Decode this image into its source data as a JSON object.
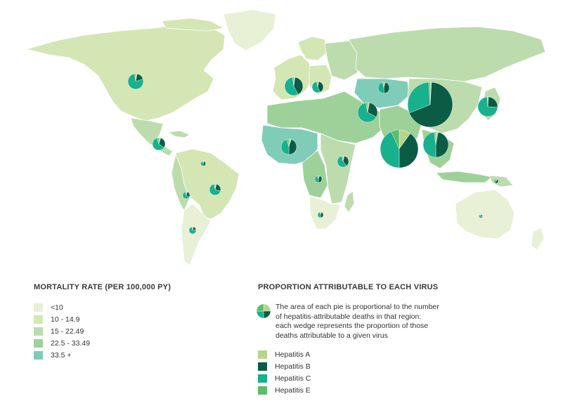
{
  "legend_rate": {
    "title": "MORTALITY RATE (PER 100,000 PY)",
    "items": [
      {
        "label": "<10",
        "color": "#e8f0d6"
      },
      {
        "label": "10 - 14.9",
        "color": "#d4e6b4"
      },
      {
        "label": "15 - 22.49",
        "color": "#bcdcae"
      },
      {
        "label": "22.5 - 33.49",
        "color": "#9ed19a"
      },
      {
        "label": "33.5 +",
        "color": "#7fcdb8"
      }
    ]
  },
  "legend_virus": {
    "title": "PROPORTION ATTRIBUTABLE TO EACH VIRUS",
    "note_lines": [
      "The area of each pie is proportional to the number",
      "of hepatitis-attributable deaths in that region:",
      "each wedge represents the proportion of those",
      "deaths attributable to a given virus"
    ],
    "items": [
      {
        "label": "Hepatitis A",
        "color": "#b5d68a"
      },
      {
        "label": "Hepatitis B",
        "color": "#0a5c45"
      },
      {
        "label": "Hepatitis C",
        "color": "#19b08d"
      },
      {
        "label": "Hepatitis E",
        "color": "#5bbd6a"
      }
    ]
  },
  "pies": [
    {
      "region": "north-america",
      "shares": [
        0.03,
        0.17,
        0.78,
        0.02
      ]
    },
    {
      "region": "central-america",
      "shares": [
        0.05,
        0.3,
        0.6,
        0.05
      ]
    },
    {
      "region": "caribbean",
      "shares": [
        0.05,
        0.45,
        0.45,
        0.05
      ]
    },
    {
      "region": "andean-latin-america",
      "shares": [
        0.05,
        0.3,
        0.6,
        0.05
      ]
    },
    {
      "region": "tropical-latin-america",
      "shares": [
        0.04,
        0.25,
        0.68,
        0.03
      ]
    },
    {
      "region": "southern-latin-america",
      "shares": [
        0.03,
        0.2,
        0.74,
        0.03
      ]
    },
    {
      "region": "western-europe",
      "shares": [
        0.02,
        0.4,
        0.56,
        0.02
      ]
    },
    {
      "region": "central-europe",
      "shares": [
        0.03,
        0.4,
        0.54,
        0.03
      ]
    },
    {
      "region": "eastern-europe",
      "shares": [
        0.03,
        0.3,
        0.64,
        0.03
      ]
    },
    {
      "region": "central-asia",
      "shares": [
        0.04,
        0.45,
        0.48,
        0.03
      ]
    },
    {
      "region": "north-africa-middle-east",
      "shares": [
        0.04,
        0.35,
        0.57,
        0.04
      ]
    },
    {
      "region": "western-sub-saharan-africa",
      "shares": [
        0.05,
        0.45,
        0.45,
        0.05
      ]
    },
    {
      "region": "eastern-sub-saharan-africa",
      "shares": [
        0.05,
        0.4,
        0.5,
        0.05
      ]
    },
    {
      "region": "central-sub-saharan-africa",
      "shares": [
        0.05,
        0.45,
        0.45,
        0.05
      ]
    },
    {
      "region": "southern-sub-saharan-africa",
      "shares": [
        0.04,
        0.45,
        0.48,
        0.03
      ]
    },
    {
      "region": "south-asia",
      "shares": [
        0.1,
        0.4,
        0.43,
        0.07
      ]
    },
    {
      "region": "east-asia",
      "shares": [
        0.01,
        0.68,
        0.3,
        0.01
      ]
    },
    {
      "region": "southeast-asia",
      "shares": [
        0.03,
        0.47,
        0.48,
        0.02
      ]
    },
    {
      "region": "high-income-asia-pacific",
      "shares": [
        0.01,
        0.25,
        0.73,
        0.01
      ]
    },
    {
      "region": "oceania",
      "shares": [
        0.05,
        0.55,
        0.35,
        0.05
      ]
    },
    {
      "region": "australasia",
      "shares": [
        0.03,
        0.3,
        0.65,
        0.02
      ]
    }
  ]
}
